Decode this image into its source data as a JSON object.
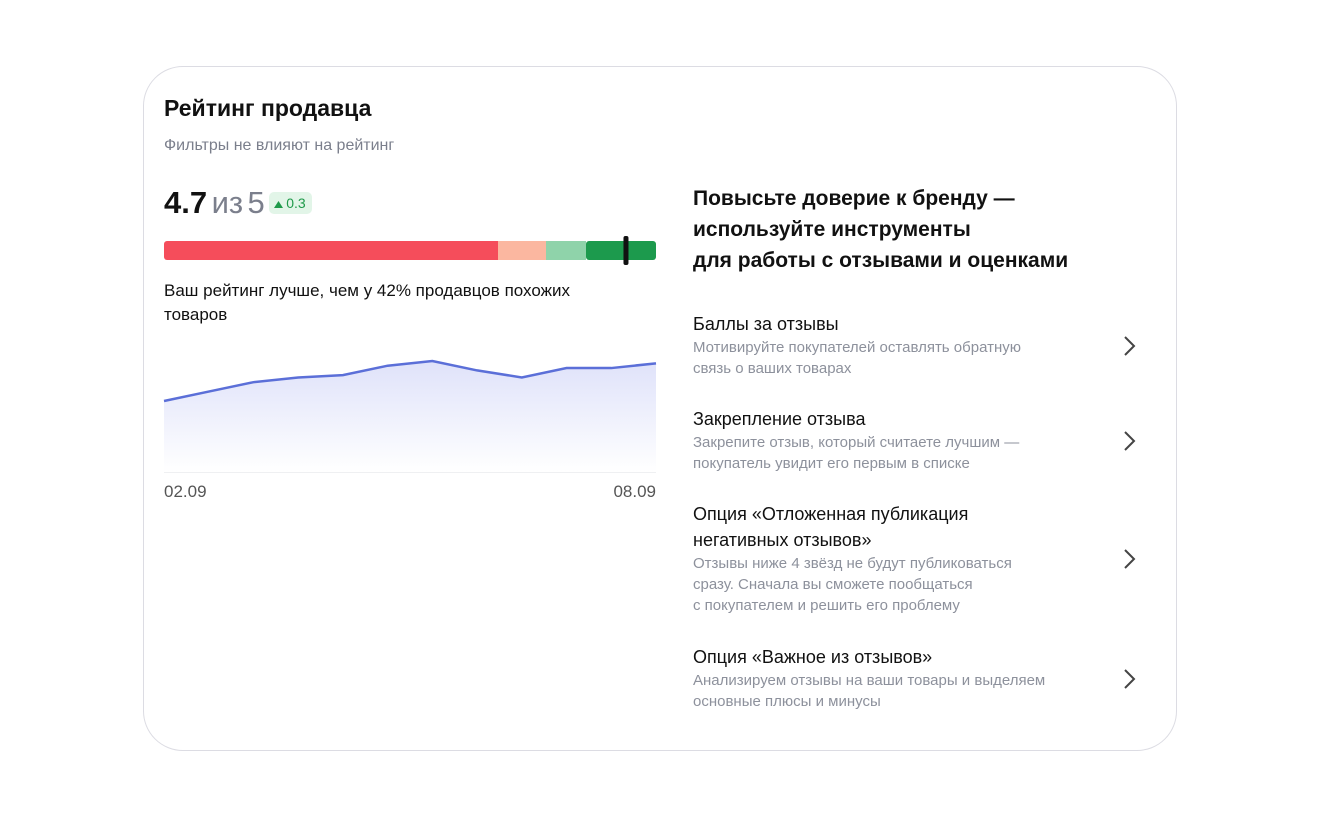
{
  "header": {
    "title": "Рейтинг продавца",
    "subtitle": "Фильтры не влияют на рейтинг"
  },
  "rating": {
    "value": 4.7,
    "of": "из",
    "max": 5,
    "change": 0.3
  },
  "comparison": [
    "Ваш рейтинг лучше, чем у 42% продавцов похожих",
    "товаров"
  ],
  "chart_data": {
    "type": "line",
    "x_start": "02.09",
    "x_end": "08.09",
    "values": [
      4.5,
      4.54,
      4.58,
      4.6,
      4.61,
      4.65,
      4.67,
      4.63,
      4.6,
      4.64,
      4.64,
      4.66
    ],
    "color": "#5b6fd8"
  },
  "promo": {
    "heading": [
      "Повысьте доверие к бренду —",
      "используйте инструменты",
      "для работы с отзывами и оценками"
    ],
    "items": [
      {
        "title": [
          "Баллы за отзывы"
        ],
        "description": [
          "Мотивируйте покупателей оставлять обратную",
          "связь о ваших товарах"
        ]
      },
      {
        "title": [
          "Закрепление отзыва"
        ],
        "description": [
          "Закрепите отзыв, который считаете лучшим —",
          "покупатель увидит его первым в списке"
        ]
      },
      {
        "title": [
          "Опция «Отложенная публикация",
          "негативных отзывов»"
        ],
        "description": [
          "Отзывы ниже 4 звёзд не будут публиковаться",
          "сразу. Сначала вы сможете пообщаться",
          "с покупателем и решить его проблему"
        ]
      },
      {
        "title": [
          "Опция «Важное из отзывов»"
        ],
        "description": [
          "Анализируем отзывы на ваши товары и выделяем",
          "основные плюсы и минусы"
        ]
      }
    ]
  }
}
